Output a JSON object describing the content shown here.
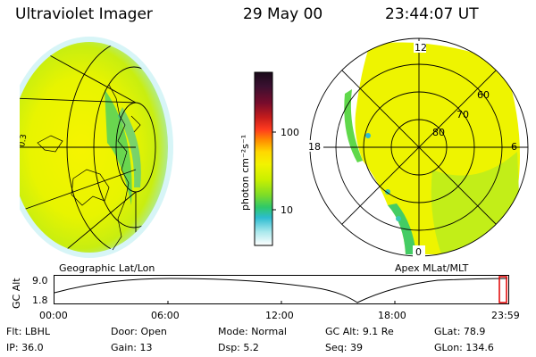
{
  "header": {
    "instrument": "Ultraviolet Imager",
    "date": "29 May 00",
    "time": "23:44:07 UT"
  },
  "colorbar": {
    "unit_label": "photon cm⁻²s⁻¹",
    "tick_labels": [
      "100",
      "10"
    ],
    "colors": [
      "#1a0a1a",
      "#3a1030",
      "#7a0c2c",
      "#c41c1c",
      "#ff3b1e",
      "#ff8a00",
      "#ffd800",
      "#f3f300",
      "#c9f000",
      "#7ddc28",
      "#2ec86a",
      "#2dbcd0",
      "#a8e8ec",
      "#ffffff"
    ]
  },
  "geo_panel": {
    "label": "Geographic Lat/Lon",
    "grid_side_label": "0.3"
  },
  "apex_panel": {
    "label": "Apex MLat/MLT",
    "mlt_labels": {
      "top": "12",
      "left": "18",
      "right": "6",
      "bottom": "0"
    },
    "mlat_labels": [
      "60",
      "70",
      "80"
    ]
  },
  "altitude_plot": {
    "ylabel": "GC Alt",
    "ytick_labels": [
      "9.0",
      "1.8"
    ],
    "xtick_labels": [
      "00:00",
      "06:00",
      "12:00",
      "18:00",
      "23:59"
    ]
  },
  "footer": {
    "row1": [
      {
        "label": "Flt:",
        "value": "LBHL"
      },
      {
        "label": "Door:",
        "value": "Open"
      },
      {
        "label": "Mode:",
        "value": "Normal"
      },
      {
        "label": "GC Alt:",
        "value": "9.1 Re"
      },
      {
        "label": "GLat:",
        "value": "78.9"
      }
    ],
    "row2": [
      {
        "label": "IP:",
        "value": "36.0"
      },
      {
        "label": "Gain:",
        "value": "13"
      },
      {
        "label": "Dsp:",
        "value": "5.2"
      },
      {
        "label": "Seq:",
        "value": "39"
      },
      {
        "label": "GLon:",
        "value": "134.6"
      }
    ]
  }
}
